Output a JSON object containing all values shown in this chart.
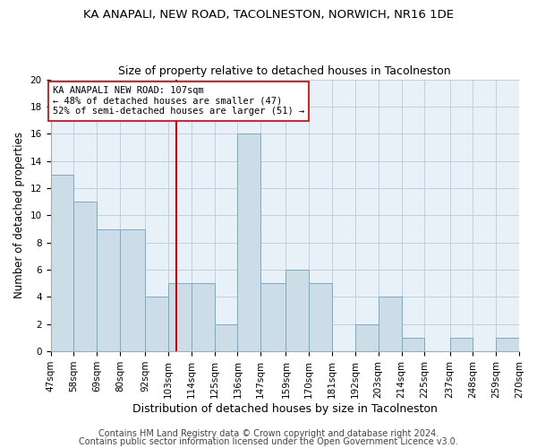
{
  "title": "KA ANAPALI, NEW ROAD, TACOLNESTON, NORWICH, NR16 1DE",
  "subtitle": "Size of property relative to detached houses in Tacolneston",
  "xlabel": "Distribution of detached houses by size in Tacolneston",
  "ylabel": "Number of detached properties",
  "bar_labels": [
    "47sqm",
    "58sqm",
    "69sqm",
    "80sqm",
    "92sqm",
    "103sqm",
    "114sqm",
    "125sqm",
    "136sqm",
    "147sqm",
    "159sqm",
    "170sqm",
    "181sqm",
    "192sqm",
    "203sqm",
    "214sqm",
    "225sqm",
    "237sqm",
    "248sqm",
    "259sqm",
    "270sqm"
  ],
  "bar_edges": [
    47,
    58,
    69,
    80,
    92,
    103,
    114,
    125,
    136,
    147,
    159,
    170,
    181,
    192,
    203,
    214,
    225,
    237,
    248,
    259,
    270
  ],
  "bar_heights": [
    13,
    11,
    9,
    9,
    4,
    5,
    5,
    2,
    16,
    5,
    6,
    5,
    0,
    2,
    4,
    1,
    0,
    1,
    0,
    1
  ],
  "bar_color": "#ccdde8",
  "bar_edgecolor": "#7aaac8",
  "vline_x": 107,
  "vline_color": "#cc0000",
  "annotation_title": "KA ANAPALI NEW ROAD: 107sqm",
  "annotation_line1": "← 48% of detached houses are smaller (47)",
  "annotation_line2": "52% of semi-detached houses are larger (51) →",
  "annotation_box_facecolor": "#ffffff",
  "annotation_box_edgecolor": "#cc0000",
  "ylim": [
    0,
    20
  ],
  "yticks": [
    0,
    2,
    4,
    6,
    8,
    10,
    12,
    14,
    16,
    18,
    20
  ],
  "footer1": "Contains HM Land Registry data © Crown copyright and database right 2024.",
  "footer2": "Contains public sector information licensed under the Open Government Licence v3.0.",
  "plot_bg_color": "#e8f0f8",
  "fig_bg_color": "#ffffff",
  "grid_color": "#c0d0e0",
  "title_fontsize": 9.5,
  "subtitle_fontsize": 9,
  "xlabel_fontsize": 9,
  "ylabel_fontsize": 8.5,
  "tick_fontsize": 7.5,
  "footer_fontsize": 7,
  "annotation_fontsize": 7.5
}
